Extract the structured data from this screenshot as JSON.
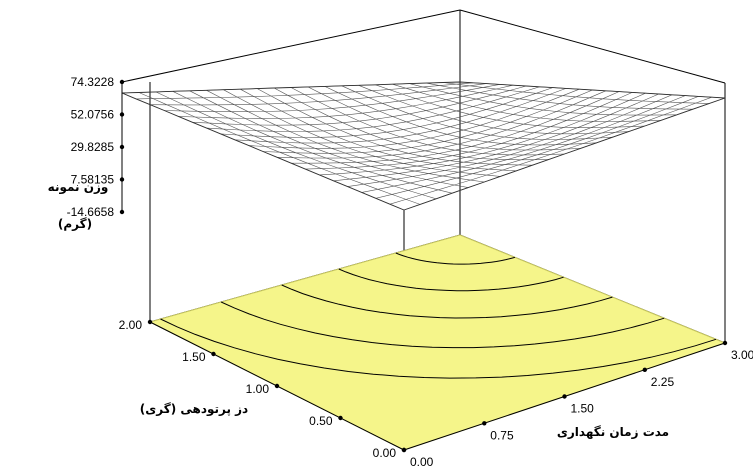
{
  "chart_data": {
    "type": "surface3d",
    "title": "",
    "zlabel": "وزن نمونه",
    "zlabel_unit": "(گرم)",
    "xlabel": "مدت زمان نگهداری",
    "ylabel": "دز پرتودهی (گری)",
    "x_ticks": [
      "0.00",
      "0.75",
      "1.50",
      "2.25",
      "3.00"
    ],
    "y_ticks": [
      "0.00",
      "0.50",
      "1.00",
      "1.50",
      "2.00"
    ],
    "z_ticks": [
      "74.3228",
      "52.0756",
      "29.8285",
      "7.58135",
      "-14.6658"
    ],
    "xlim": [
      0,
      3
    ],
    "ylim": [
      0,
      2
    ],
    "zlim": [
      -14.6658,
      74.3228
    ],
    "grid": true,
    "contour_projection": true,
    "floor_color": "#f5f58a",
    "floor_stroke": "#c8c860",
    "contour_color": "#000000",
    "mesh_color": "#555555"
  }
}
